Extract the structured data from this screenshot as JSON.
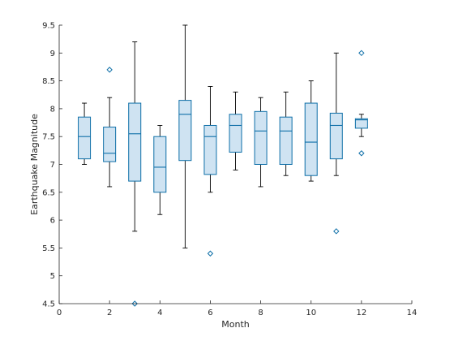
{
  "chart_data": {
    "type": "boxplot",
    "xlabel": "Month",
    "ylabel": "Earthquake Magnitude",
    "xlim": [
      0,
      14
    ],
    "ylim": [
      4.5,
      9.5
    ],
    "x_ticks": [
      "0",
      "2",
      "4",
      "6",
      "8",
      "10",
      "12",
      "14"
    ],
    "y_ticks": [
      "4.5",
      "5",
      "5.5",
      "6",
      "6.5",
      "7",
      "7.5",
      "8",
      "8.5",
      "9",
      "9.5"
    ],
    "grid": false,
    "box_fill": "#cfe3f2",
    "box_stroke": "#0e6fa8",
    "whisker_color": "#000000",
    "boxes": [
      {
        "x": 1,
        "whisker_low": 7.0,
        "q1": 7.1,
        "median": 7.5,
        "q3": 7.85,
        "whisker_high": 8.1,
        "outliers": []
      },
      {
        "x": 2,
        "whisker_low": 6.6,
        "q1": 7.05,
        "median": 7.2,
        "q3": 7.67,
        "whisker_high": 8.2,
        "outliers": [
          8.7
        ]
      },
      {
        "x": 3,
        "whisker_low": 5.8,
        "q1": 6.7,
        "median": 7.55,
        "q3": 8.1,
        "whisker_high": 9.2,
        "outliers": [
          4.5
        ]
      },
      {
        "x": 4,
        "whisker_low": 6.1,
        "q1": 6.5,
        "median": 6.95,
        "q3": 7.5,
        "whisker_high": 7.7,
        "outliers": []
      },
      {
        "x": 5,
        "whisker_low": 5.5,
        "q1": 7.07,
        "median": 7.9,
        "q3": 8.15,
        "whisker_high": 9.5,
        "outliers": []
      },
      {
        "x": 6,
        "whisker_low": 6.5,
        "q1": 6.82,
        "median": 7.5,
        "q3": 7.7,
        "whisker_high": 8.4,
        "outliers": [
          5.4
        ]
      },
      {
        "x": 7,
        "whisker_low": 6.9,
        "q1": 7.22,
        "median": 7.7,
        "q3": 7.9,
        "whisker_high": 8.3,
        "outliers": []
      },
      {
        "x": 8,
        "whisker_low": 6.6,
        "q1": 7.0,
        "median": 7.6,
        "q3": 7.95,
        "whisker_high": 8.2,
        "outliers": []
      },
      {
        "x": 9,
        "whisker_low": 6.8,
        "q1": 7.0,
        "median": 7.6,
        "q3": 7.85,
        "whisker_high": 8.3,
        "outliers": []
      },
      {
        "x": 10,
        "whisker_low": 6.7,
        "q1": 6.8,
        "median": 7.4,
        "q3": 8.1,
        "whisker_high": 8.5,
        "outliers": []
      },
      {
        "x": 11,
        "whisker_low": 6.8,
        "q1": 7.1,
        "median": 7.7,
        "q3": 7.92,
        "whisker_high": 9.0,
        "outliers": [
          5.8
        ]
      },
      {
        "x": 12,
        "whisker_low": 7.5,
        "q1": 7.65,
        "median": 7.8,
        "q3": 7.82,
        "whisker_high": 7.9,
        "outliers": [
          9.0,
          7.2
        ]
      }
    ]
  }
}
